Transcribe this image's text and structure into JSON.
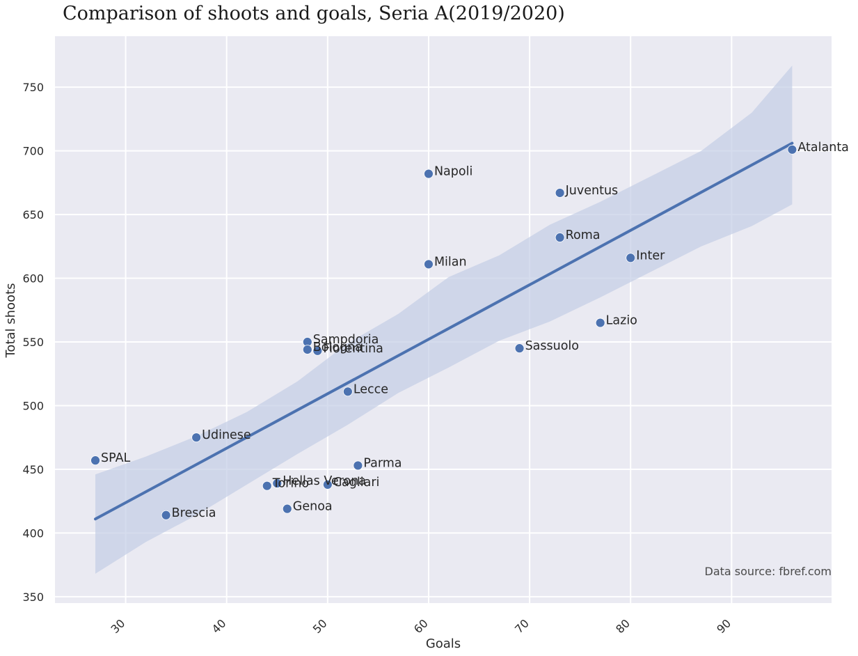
{
  "chart_data": {
    "type": "scatter",
    "title": "Comparison of shoots and goals, Seria A(2019/2020)",
    "xlabel": "Goals",
    "ylabel": "Total shoots",
    "xlim": [
      23,
      99.9
    ],
    "ylim": [
      345,
      790
    ],
    "x_ticks": [
      30,
      40,
      50,
      60,
      70,
      80,
      90
    ],
    "y_ticks": [
      350,
      400,
      450,
      500,
      550,
      600,
      650,
      700,
      750
    ],
    "grid": true,
    "points": [
      {
        "label": "Atalanta",
        "x": 96,
        "y": 701
      },
      {
        "label": "Napoli",
        "x": 60,
        "y": 682
      },
      {
        "label": "Juventus",
        "x": 73,
        "y": 667
      },
      {
        "label": "Roma",
        "x": 73,
        "y": 632
      },
      {
        "label": "Inter",
        "x": 80,
        "y": 616
      },
      {
        "label": "Milan",
        "x": 60,
        "y": 611
      },
      {
        "label": "Lazio",
        "x": 77,
        "y": 565
      },
      {
        "label": "Sampdoria",
        "x": 48,
        "y": 550
      },
      {
        "label": "Sassuolo",
        "x": 69,
        "y": 545
      },
      {
        "label": "Bologna",
        "x": 48,
        "y": 544
      },
      {
        "label": "Fiorentina",
        "x": 49,
        "y": 543
      },
      {
        "label": "Lecce",
        "x": 52,
        "y": 511
      },
      {
        "label": "Udinese",
        "x": 37,
        "y": 475
      },
      {
        "label": "SPAL",
        "x": 27,
        "y": 457
      },
      {
        "label": "Parma",
        "x": 53,
        "y": 453
      },
      {
        "label": "Hellas Verona",
        "x": 45,
        "y": 439
      },
      {
        "label": "Cagliari",
        "x": 50,
        "y": 438
      },
      {
        "label": "Torino",
        "x": 44,
        "y": 437
      },
      {
        "label": "Genoa",
        "x": 46,
        "y": 419
      },
      {
        "label": "Brescia",
        "x": 34,
        "y": 414
      }
    ],
    "regression": {
      "x": [
        27,
        96
      ],
      "y": [
        411,
        706
      ]
    },
    "confidence_band": {
      "x": [
        27,
        32,
        37,
        42,
        47,
        52,
        57,
        62,
        67,
        72,
        77,
        82,
        87,
        92,
        96
      ],
      "upper": [
        446,
        460,
        476,
        495,
        519,
        549,
        572,
        601,
        618,
        642,
        660,
        680,
        700,
        730,
        767
      ],
      "lower": [
        368,
        393,
        414,
        438,
        462,
        485,
        510,
        530,
        551,
        566,
        585,
        605,
        625,
        641,
        658
      ]
    },
    "annotation": "Data source: fbref.com",
    "colors": {
      "points": "#4c72b0",
      "line": "#4c72b0",
      "band": "#c3cde6",
      "background": "#eaeaf2",
      "grid": "#ffffff"
    }
  }
}
